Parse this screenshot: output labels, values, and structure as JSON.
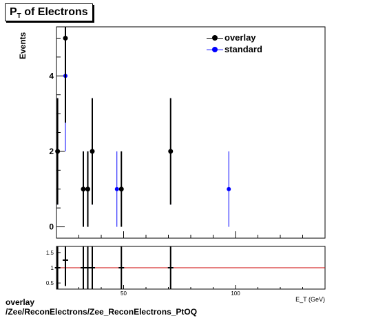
{
  "title": "P",
  "title_sub": "T",
  "title_rest": " of Electrons",
  "footer_line1": "overlay",
  "footer_line2": "/Zee/ReconElectrons/Zee_ReconElectrons_PtOQ",
  "colors": {
    "overlay": "#000000",
    "standard": "#0000ff",
    "ratio_line": "#cc0000"
  },
  "chart_data": {
    "type": "scatter",
    "title": "P_T of Electrons",
    "ylabel": "Events",
    "xlabel": "E_T (GeV)",
    "xlim": [
      20,
      140
    ],
    "main": {
      "ylim": [
        -0.3,
        5.3
      ],
      "yticks": [
        "0",
        "2",
        "4"
      ],
      "series": [
        {
          "name": "overlay",
          "points": [
            {
              "x": 20.5,
              "y": 2,
              "err": 1.41
            },
            {
              "x": 24,
              "y": 5,
              "err": 2.24
            },
            {
              "x": 32,
              "y": 1,
              "err": 1
            },
            {
              "x": 34,
              "y": 1,
              "err": 1
            },
            {
              "x": 36,
              "y": 2,
              "err": 1.41
            },
            {
              "x": 49,
              "y": 1,
              "err": 1
            },
            {
              "x": 71,
              "y": 2,
              "err": 1.41
            }
          ]
        },
        {
          "name": "standard",
          "points": [
            {
              "x": 20.5,
              "y": 2,
              "err": 1.41
            },
            {
              "x": 24,
              "y": 4,
              "err": 2
            },
            {
              "x": 32,
              "y": 1,
              "err": 1
            },
            {
              "x": 34,
              "y": 1,
              "err": 1
            },
            {
              "x": 36,
              "y": 2,
              "err": 1.41
            },
            {
              "x": 47,
              "y": 1,
              "err": 1
            },
            {
              "x": 71,
              "y": 2,
              "err": 1.41
            },
            {
              "x": 97,
              "y": 1,
              "err": 1
            }
          ]
        }
      ]
    },
    "ratio": {
      "ylim": [
        0.3,
        1.7
      ],
      "yticks": [
        "0.5",
        "1",
        "1.5"
      ],
      "xticks": [
        "50",
        "100"
      ],
      "reference": 1,
      "points": [
        {
          "x": 20.5,
          "y": 1,
          "err": 0.9
        },
        {
          "x": 24,
          "y": 1.25,
          "err": 0.85
        },
        {
          "x": 32,
          "y": 1,
          "err": 1.2
        },
        {
          "x": 34,
          "y": 1,
          "err": 1.2
        },
        {
          "x": 36,
          "y": 1,
          "err": 1.2
        },
        {
          "x": 49,
          "y": 1,
          "err": 1.2
        },
        {
          "x": 71,
          "y": 1,
          "err": 1.2
        }
      ]
    }
  }
}
